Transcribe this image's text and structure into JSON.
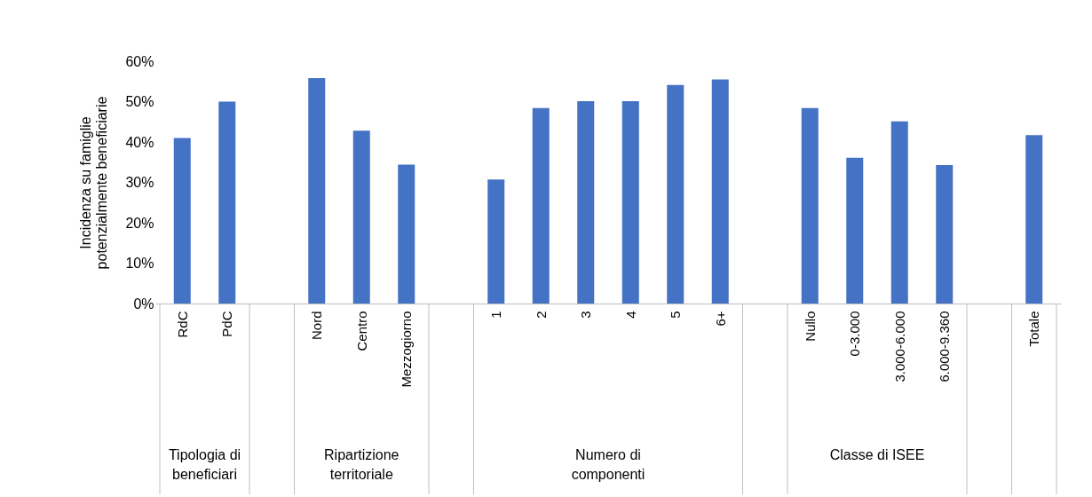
{
  "chart_data": {
    "type": "bar",
    "ylabel": "Incidenza su famiglie potenzialmente beneficiarie",
    "categories": [
      "RdC",
      "PdC",
      null,
      "Nord",
      "Centro",
      "Mezzogiorno",
      null,
      "1",
      "2",
      "3",
      "4",
      "5",
      "6+",
      null,
      "Nullo",
      "0-3.000",
      "3.000-6.000",
      "6.000-9.360",
      null,
      "Totale"
    ],
    "values": [
      41,
      50,
      null,
      55.8,
      42.8,
      34.4,
      null,
      30.7,
      48.4,
      50.1,
      50.1,
      54.1,
      55.5,
      null,
      48.4,
      36.1,
      45.1,
      34.3,
      null,
      41.7
    ],
    "color": "#4472c4",
    "annotations": [
      "Tipologia di beneficiari",
      "Ripartizione territoriale",
      "Numero di componenti",
      "Classe di ISEE"
    ],
    "ylim": [
      0,
      60
    ],
    "yticks": [
      {
        "value": 0,
        "label": "0%"
      },
      {
        "value": 10,
        "label": "10%"
      },
      {
        "value": 20,
        "label": "20%"
      },
      {
        "value": 30,
        "label": "30%"
      },
      {
        "value": 40,
        "label": "40%"
      },
      {
        "value": 50,
        "label": "50%"
      },
      {
        "value": 60,
        "label": "60%"
      }
    ],
    "grid": false
  }
}
